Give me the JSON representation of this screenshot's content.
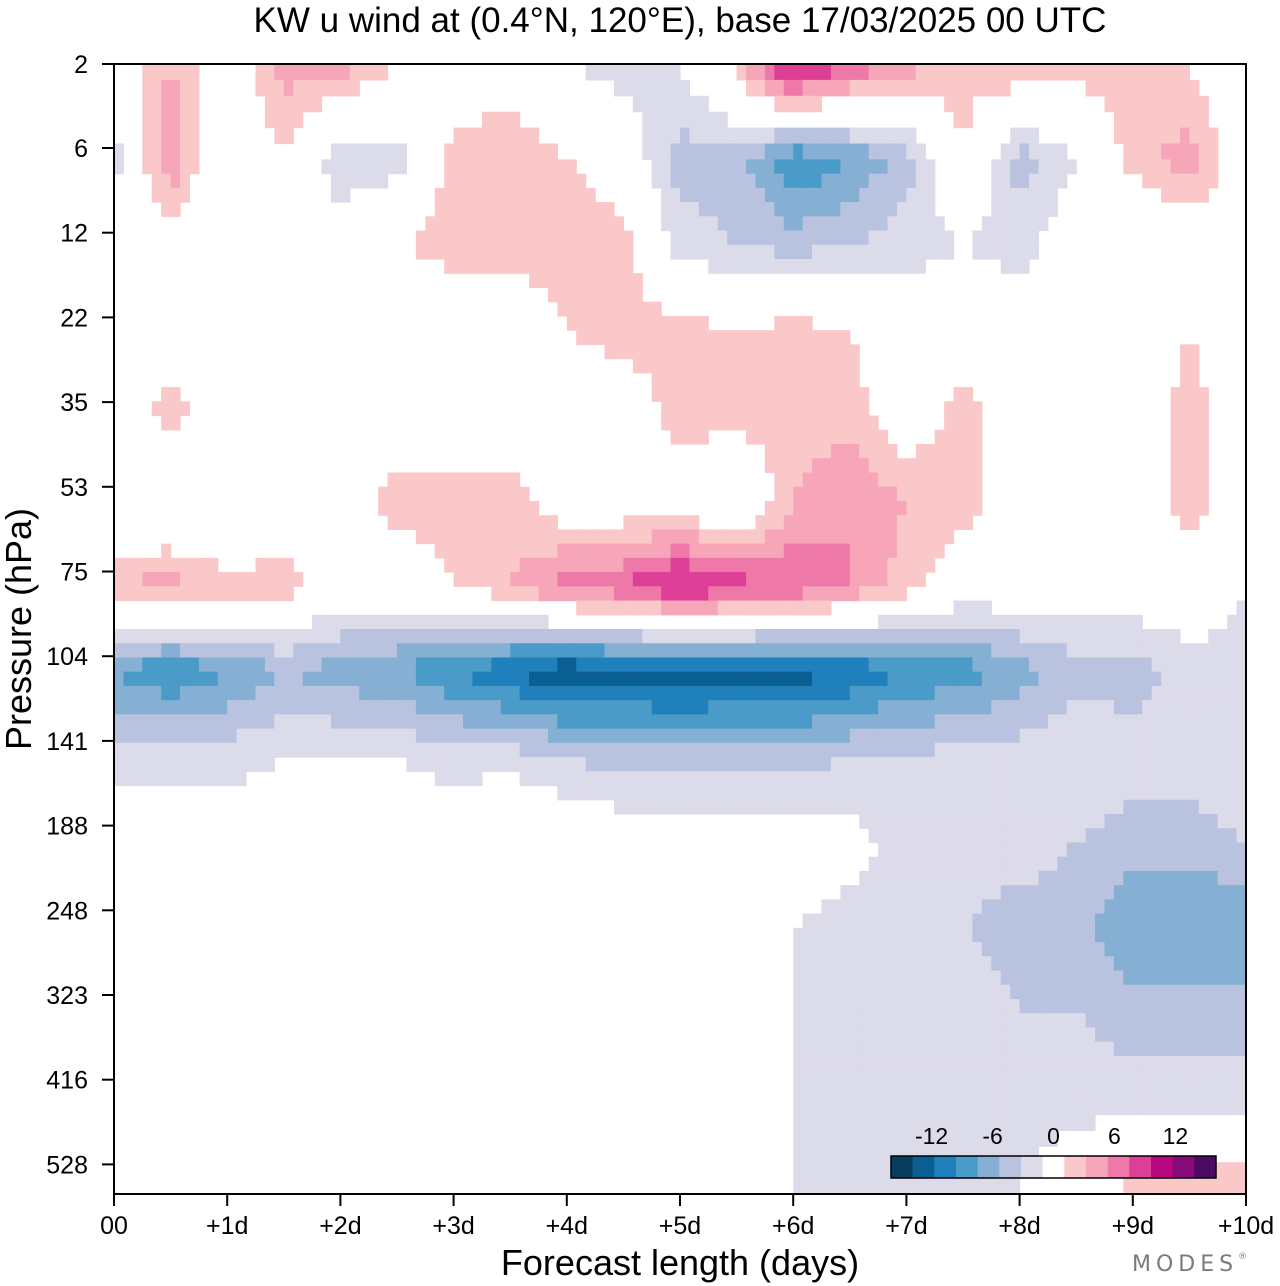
{
  "chart_data": {
    "type": "heatmap",
    "title": "KW u wind at (0.4°N, 120°E),  base 17/03/2025  00 UTC",
    "xlabel": "Forecast length (days)",
    "ylabel": "Pressure (hPa)",
    "x_ticks": [
      "00",
      "+1d",
      "+2d",
      "+3d",
      "+4d",
      "+5d",
      "+6d",
      "+7d",
      "+8d",
      "+9d",
      "+10d"
    ],
    "xlim": [
      0,
      10
    ],
    "y_ticks": [
      "2",
      "6",
      "12",
      "22",
      "35",
      "53",
      "75",
      "104",
      "141",
      "188",
      "248",
      "323",
      "416",
      "528"
    ],
    "y_axis": "pressure, decreasing upward",
    "ylim": [
      528,
      2
    ],
    "colorbar": {
      "labels": [
        "-12",
        "-6",
        "0",
        "6",
        "12"
      ],
      "boundaries": [
        -16,
        -14,
        -12,
        -10,
        -8,
        -6,
        -4,
        -2,
        2,
        4,
        6,
        8,
        10,
        12,
        14,
        16
      ],
      "colors": [
        "#083d5f",
        "#0a5f92",
        "#1f80bc",
        "#4b9bc9",
        "#85b0d4",
        "#b9c3e0",
        "#dcdbea",
        "#ffffff",
        "#fbc8c9",
        "#f6a6b8",
        "#ee79a8",
        "#de3f96",
        "#b8087f",
        "#88097a",
        "#4b0b63"
      ]
    },
    "x": [
      0,
      0.5,
      1,
      1.5,
      2,
      2.5,
      3,
      3.5,
      4,
      4.5,
      5,
      5.5,
      6,
      6.5,
      7,
      7.5,
      8,
      8.5,
      9,
      9.5,
      10
    ],
    "y": [
      2,
      6,
      12,
      22,
      35,
      53,
      75,
      104,
      141,
      188,
      248,
      323,
      416,
      528
    ],
    "z": [
      [
        0,
        4,
        0,
        5,
        5,
        2,
        0,
        0,
        -2,
        -3,
        -2,
        3,
        12,
        8,
        5,
        3,
        4,
        3,
        3,
        2,
        -2
      ],
      [
        -3,
        6,
        -2,
        2,
        -4,
        -3,
        3,
        4,
        2,
        0,
        -5,
        -5,
        -10,
        -8,
        -5,
        2,
        -5,
        -2,
        3,
        5,
        0
      ],
      [
        0,
        0,
        0,
        0,
        0,
        2,
        3,
        3,
        4,
        3,
        -3,
        -4,
        -5,
        -4,
        -3,
        -2,
        -3,
        0,
        -2,
        0,
        0
      ],
      [
        0,
        0,
        2,
        0,
        -1,
        -2,
        0,
        -1,
        2,
        3,
        3,
        2,
        3,
        2,
        0,
        0,
        0,
        2,
        0,
        2,
        0
      ],
      [
        0,
        3,
        0,
        0,
        0,
        0,
        0,
        0,
        0,
        0,
        3,
        3,
        3,
        3,
        0,
        3,
        0,
        0,
        0,
        3,
        0
      ],
      [
        -2,
        -2,
        -2,
        0,
        0,
        3,
        3,
        3,
        0,
        0,
        0,
        -2,
        4,
        6,
        4,
        3,
        0,
        0,
        0,
        3,
        0
      ],
      [
        4,
        5,
        3,
        3,
        0,
        0,
        2,
        4,
        7,
        8,
        11,
        9,
        8,
        6,
        3,
        0,
        0,
        0,
        0,
        0,
        -2
      ],
      [
        -8,
        -10,
        -8,
        -6,
        -7,
        -8,
        -10,
        -12,
        -14,
        -13,
        -14,
        -13,
        -13,
        -12,
        -10,
        -9,
        -7,
        -5,
        -5,
        -3,
        -3
      ],
      [
        -3,
        -3,
        -3,
        -2,
        -2,
        -2,
        -3,
        -3,
        -4,
        -5,
        -5,
        -5,
        -5,
        -4,
        -4,
        -3,
        -3,
        -2,
        -3,
        -3,
        -2
      ],
      [
        0,
        0,
        0,
        0,
        0,
        0,
        0,
        2,
        0,
        0,
        0,
        0,
        0,
        -1,
        -3,
        -3,
        -3,
        -4,
        -5,
        -5,
        -4
      ],
      [
        0,
        0,
        0,
        0,
        0,
        0,
        0,
        0,
        -2,
        -2,
        -2,
        -2,
        -2,
        -3,
        -3,
        -4,
        -5,
        -5,
        -8,
        -8,
        -8
      ],
      [
        0,
        0,
        0,
        0,
        0,
        0,
        -2,
        -2,
        -2,
        -2,
        0,
        -2,
        -2,
        -3,
        -3,
        -3,
        -4,
        -4,
        -5,
        -5,
        -5
      ],
      [
        0,
        0,
        0,
        0,
        0,
        -2,
        -2,
        -2,
        -2,
        -2,
        0,
        -2,
        -2,
        -3,
        -3,
        -3,
        -3,
        -3,
        -3,
        -3,
        -3
      ],
      [
        0,
        0,
        0,
        -2,
        -2,
        -2,
        -2,
        -2,
        -2,
        -2,
        -2,
        -2,
        -2,
        -3,
        -2,
        -2,
        -2,
        0,
        3,
        4,
        4
      ]
    ]
  },
  "branding": {
    "logo_text": "MODES",
    "logo_mark": "®"
  }
}
